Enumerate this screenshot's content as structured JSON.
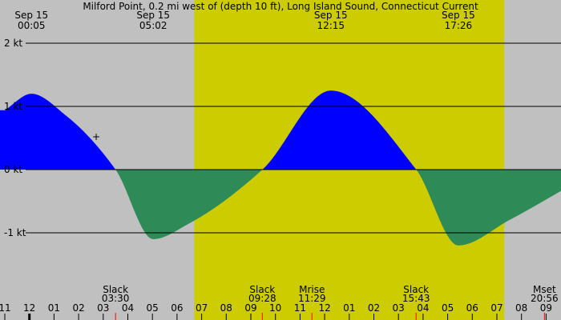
{
  "title": "Milford Point, 0.2 mi west of (depth 10 ft), Long Island Sound, Connecticut Current",
  "colors": {
    "background": "#c0c0c0",
    "daylight": "#cccc00",
    "flood": "#0000ff",
    "ebb": "#2e8b57",
    "grid": "#000000",
    "event_tick": "#ff0000"
  },
  "chart_data": {
    "type": "area",
    "title": "Milford Point, 0.2 mi west of (depth 10 ft), Long Island Sound, Connecticut Current",
    "units": "kt",
    "x_hours": [
      -1,
      22
    ],
    "ylim": [
      -2.1,
      2.6
    ],
    "y_ticks": [
      {
        "value": 2,
        "label": "2 kt"
      },
      {
        "value": 1,
        "label": "1 kt"
      },
      {
        "value": 0,
        "label": "0 kt"
      },
      {
        "value": -1,
        "label": "-1 kt"
      }
    ],
    "daylight_hours": [
      6.7,
      19.3
    ],
    "extrema": [
      {
        "date": "Sep 15",
        "time": "00:05",
        "value": 1.2
      },
      {
        "date": "Sep 15",
        "time": "05:02",
        "value": -1.1
      },
      {
        "date": "Sep 15",
        "time": "12:15",
        "value": 1.25
      },
      {
        "date": "Sep 15",
        "time": "17:26",
        "value": -1.2
      }
    ],
    "events": [
      {
        "label": "Slack",
        "time": "03:30"
      },
      {
        "label": "Slack",
        "time": "09:28"
      },
      {
        "label": "Mrise",
        "time": "11:29"
      },
      {
        "label": "Slack",
        "time": "15:43"
      },
      {
        "label": "Mset",
        "time": "20:56"
      }
    ],
    "hour_labels": [
      "11",
      "12",
      "01",
      "02",
      "03",
      "04",
      "05",
      "06",
      "07",
      "08",
      "09",
      "10",
      "11",
      "12",
      "01",
      "02",
      "03",
      "04",
      "05",
      "06",
      "07",
      "08",
      "09"
    ],
    "current_curve": [
      {
        "h": -1.0,
        "v": 0.94
      },
      {
        "h": 0.08,
        "v": 1.2
      },
      {
        "h": 1.5,
        "v": 0.85
      },
      {
        "h": 3.5,
        "v": 0.0
      },
      {
        "h": 5.03,
        "v": -1.1
      },
      {
        "h": 6.5,
        "v": -0.85
      },
      {
        "h": 9.47,
        "v": 0.0
      },
      {
        "h": 12.25,
        "v": 1.25
      },
      {
        "h": 15.72,
        "v": 0.0
      },
      {
        "h": 17.43,
        "v": -1.2
      },
      {
        "h": 19.5,
        "v": -0.8
      },
      {
        "h": 22.0,
        "v": -0.25
      }
    ]
  }
}
